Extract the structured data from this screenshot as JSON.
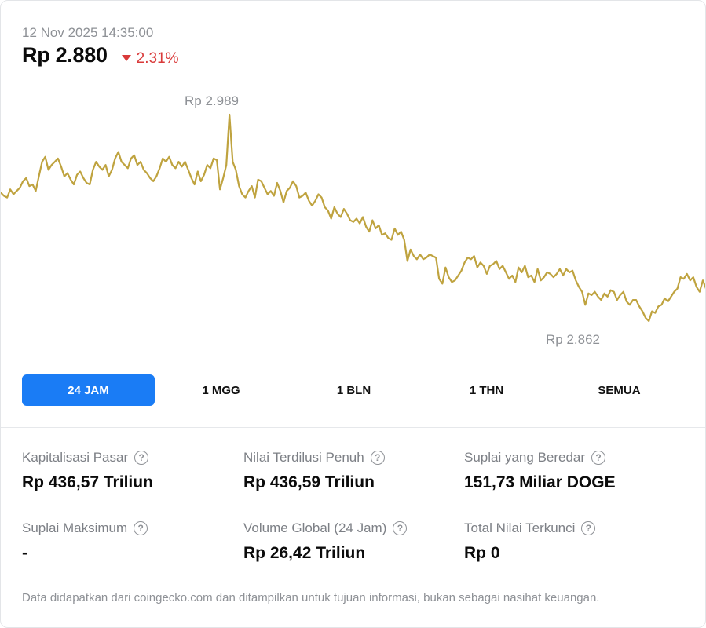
{
  "header": {
    "timestamp": "12 Nov 2025 14:35:00",
    "price": "Rp 2.880",
    "change": "2.31%",
    "change_direction": "down",
    "change_color": "#d93a3a"
  },
  "chart": {
    "line_color": "#bfa33f",
    "high_label": "Rp 2.989",
    "low_label": "Rp 2.862"
  },
  "chart_data": {
    "type": "line",
    "y_unit": "Rp",
    "ylim": [
      2860,
      2990
    ],
    "grid": false,
    "series": [
      {
        "values": [
          2941,
          2939,
          2938,
          2943,
          2940,
          2942,
          2944,
          2948,
          2950,
          2945,
          2946,
          2942,
          2951,
          2960,
          2963,
          2955,
          2958,
          2960,
          2962,
          2957,
          2951,
          2953,
          2949,
          2946,
          2952,
          2954,
          2950,
          2947,
          2946,
          2955,
          2960,
          2957,
          2955,
          2958,
          2951,
          2955,
          2962,
          2966,
          2960,
          2958,
          2956,
          2962,
          2964,
          2958,
          2960,
          2955,
          2953,
          2950,
          2948,
          2951,
          2956,
          2962,
          2960,
          2963,
          2958,
          2956,
          2960,
          2957,
          2960,
          2955,
          2950,
          2946,
          2954,
          2948,
          2952,
          2958,
          2956,
          2962,
          2961,
          2943,
          2950,
          2958,
          2989,
          2960,
          2955,
          2945,
          2940,
          2938,
          2942,
          2945,
          2938,
          2949,
          2948,
          2944,
          2940,
          2942,
          2939,
          2947,
          2942,
          2935,
          2942,
          2944,
          2948,
          2945,
          2938,
          2939,
          2941,
          2936,
          2933,
          2936,
          2940,
          2938,
          2932,
          2930,
          2925,
          2932,
          2928,
          2926,
          2931,
          2928,
          2924,
          2923,
          2925,
          2922,
          2926,
          2920,
          2917,
          2924,
          2919,
          2921,
          2915,
          2916,
          2913,
          2912,
          2919,
          2915,
          2917,
          2912,
          2899,
          2906,
          2902,
          2900,
          2903,
          2900,
          2901,
          2903,
          2902,
          2901,
          2888,
          2885,
          2895,
          2889,
          2886,
          2887,
          2890,
          2893,
          2898,
          2901,
          2900,
          2902,
          2895,
          2898,
          2896,
          2891,
          2896,
          2897,
          2899,
          2894,
          2896,
          2892,
          2888,
          2890,
          2886,
          2895,
          2892,
          2896,
          2889,
          2890,
          2886,
          2894,
          2887,
          2889,
          2892,
          2891,
          2889,
          2891,
          2894,
          2890,
          2894,
          2892,
          2893,
          2887,
          2883,
          2880,
          2872,
          2879,
          2878,
          2880,
          2877,
          2875,
          2879,
          2877,
          2881,
          2880,
          2875,
          2878,
          2880,
          2874,
          2872,
          2875,
          2875,
          2871,
          2868,
          2864,
          2862,
          2868,
          2867,
          2871,
          2872,
          2876,
          2874,
          2877,
          2880,
          2882,
          2889,
          2888,
          2891,
          2887,
          2889,
          2883,
          2880,
          2887,
          2882
        ]
      }
    ]
  },
  "tabs": [
    {
      "label": "24 JAM",
      "active": true
    },
    {
      "label": "1 MGG",
      "active": false
    },
    {
      "label": "1 BLN",
      "active": false
    },
    {
      "label": "1 THN",
      "active": false
    },
    {
      "label": "SEMUA",
      "active": false
    }
  ],
  "stats": [
    {
      "label": "Kapitalisasi Pasar",
      "value": "Rp 436,57 Triliun"
    },
    {
      "label": "Nilai Terdilusi Penuh",
      "value": "Rp 436,59 Triliun"
    },
    {
      "label": "Suplai yang Beredar",
      "value": "151,73 Miliar DOGE"
    },
    {
      "label": "Suplai Maksimum",
      "value": "-"
    },
    {
      "label": "Volume Global (24 Jam)",
      "value": "Rp 26,42 Triliun"
    },
    {
      "label": "Total Nilai Terkunci",
      "value": "Rp 0"
    }
  ],
  "help_glyph": "?",
  "disclaimer": "Data didapatkan dari coingecko.com dan ditampilkan untuk tujuan informasi, bukan sebagai nasihat keuangan.",
  "colors": {
    "accent": "#1a7cf5",
    "text_muted": "#8e9196"
  }
}
